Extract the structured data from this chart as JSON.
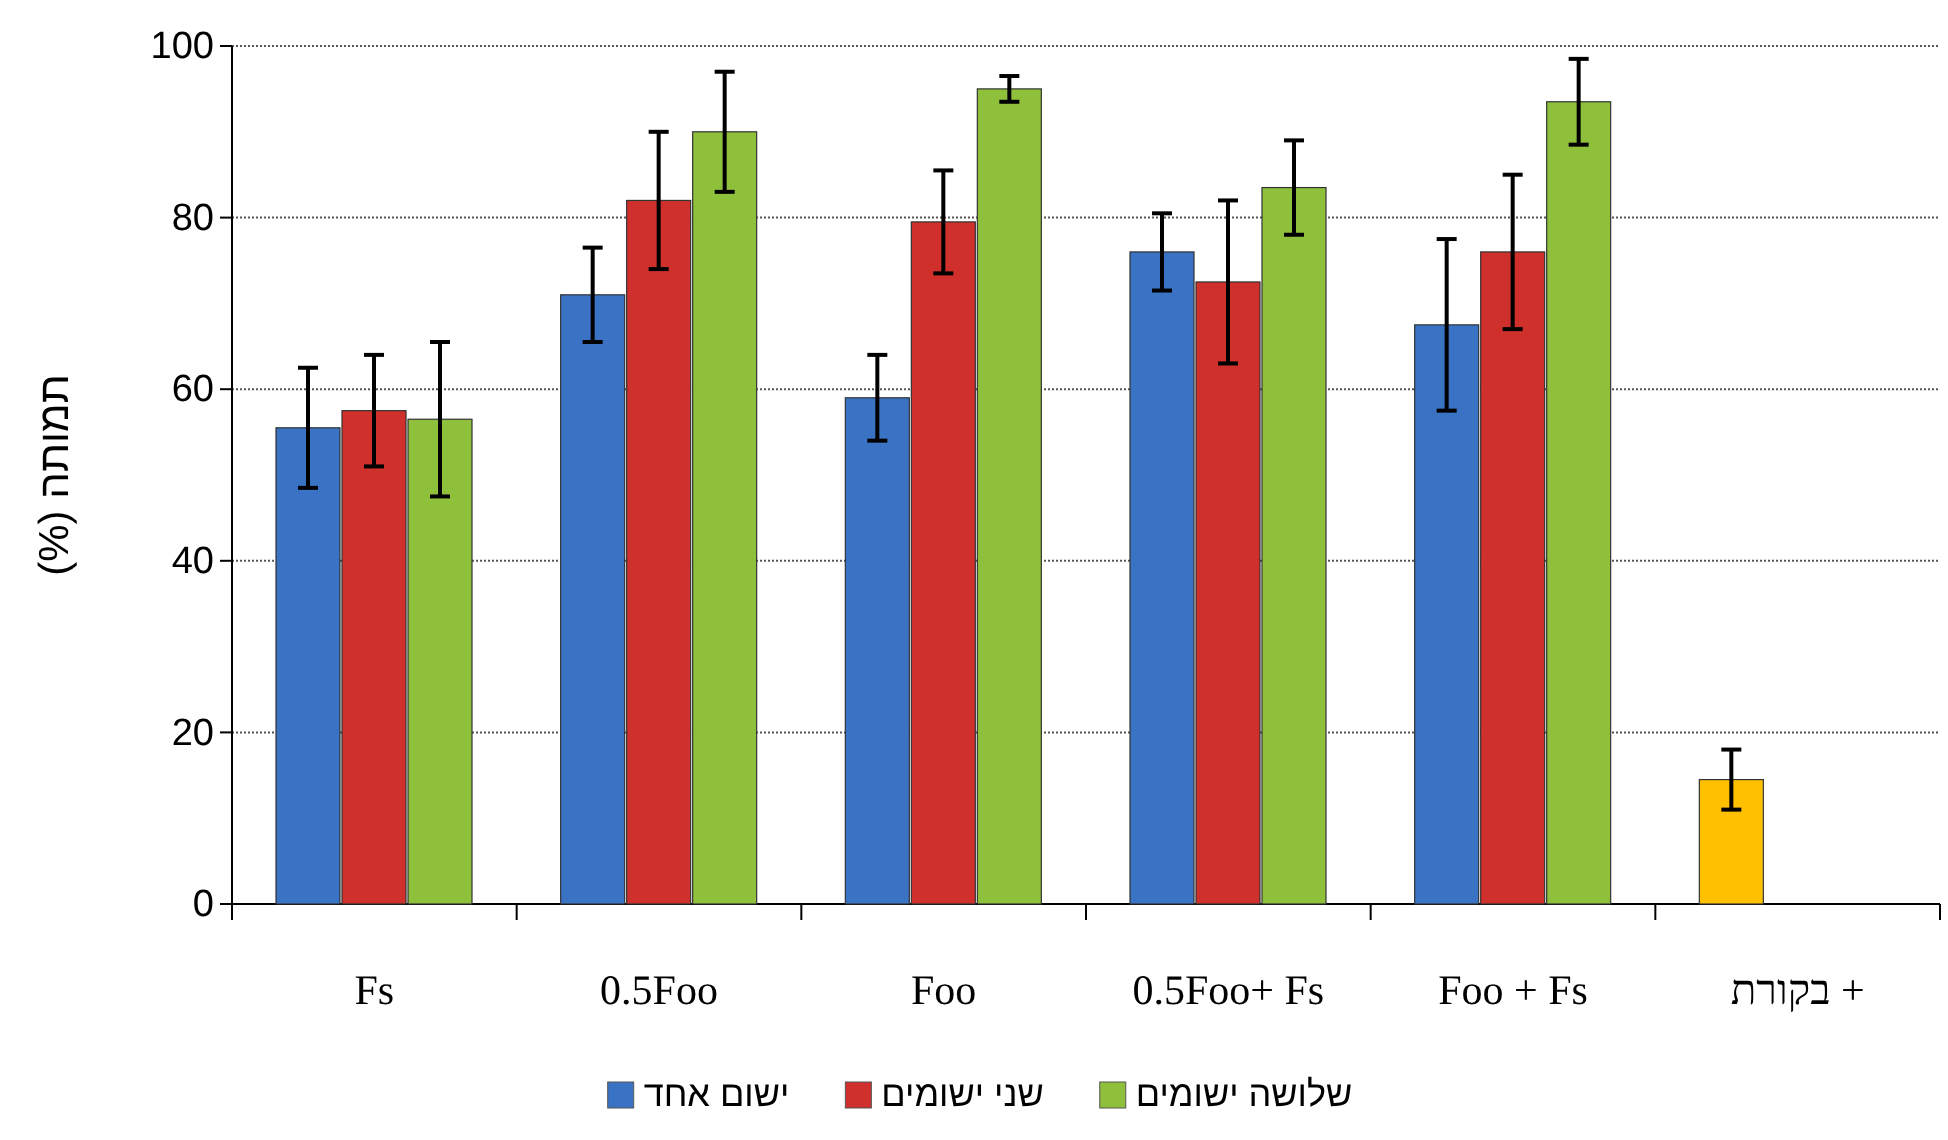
{
  "chart_data": {
    "type": "bar",
    "ylabel": "תמותה (%)",
    "categories": [
      "Fs",
      "0.5Foo",
      "Foo",
      "0.5Foo+ Fs",
      "Foo + Fs",
      "+ בקורת"
    ],
    "ylim": [
      0,
      100
    ],
    "yticks": [
      0,
      20,
      40,
      60,
      80,
      100
    ],
    "grid": "y",
    "legend": "bottom",
    "series": [
      {
        "name": "ישום אחד",
        "color": "#3a72c4",
        "colors": [
          "#3a72c4",
          "#3a72c4",
          "#3a72c4",
          "#3a72c4",
          "#3a72c4",
          "#ffc000"
        ],
        "values": [
          55.5,
          71,
          59,
          76,
          67.5,
          14.5
        ],
        "errors": [
          7,
          5.5,
          5,
          4.5,
          10,
          3.5
        ]
      },
      {
        "name": "שני ישומים",
        "color": "#d0302c",
        "values": [
          57.5,
          82,
          79.5,
          72.5,
          76,
          null
        ],
        "errors": [
          6.5,
          8,
          6,
          9.5,
          9,
          null
        ]
      },
      {
        "name": "שלושה ישומים",
        "color": "#8fc03c",
        "values": [
          56.5,
          90,
          95,
          83.5,
          93.5,
          null
        ],
        "errors": [
          9,
          7,
          1.5,
          5.5,
          5,
          null
        ]
      }
    ]
  }
}
